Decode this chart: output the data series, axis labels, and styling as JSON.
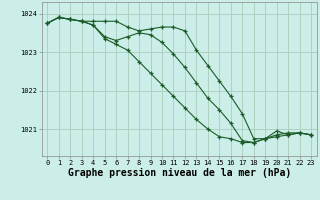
{
  "background_color": "#cceee8",
  "grid_color": "#aaccbb",
  "line_color": "#1a5c28",
  "marker_color": "#1a5c28",
  "xlabel": "Graphe pression niveau de la mer (hPa)",
  "xlabel_fontsize": 7.0,
  "xlabel_fontweight": "bold",
  "ylabel_ticks": [
    1021,
    1022,
    1023,
    1024
  ],
  "xlim": [
    -0.5,
    23.5
  ],
  "ylim": [
    1020.3,
    1024.3
  ],
  "series": [
    {
      "x": [
        0,
        1,
        2,
        3,
        4,
        5,
        6,
        7,
        8,
        9,
        10,
        11,
        12,
        13,
        14,
        15,
        16,
        17,
        18,
        19,
        20,
        21,
        22,
        23
      ],
      "y": [
        1023.75,
        1023.9,
        1023.85,
        1023.8,
        1023.8,
        1023.8,
        1023.8,
        1023.65,
        1023.55,
        1023.6,
        1023.65,
        1023.65,
        1023.55,
        1023.05,
        1022.65,
        1022.25,
        1021.85,
        1021.4,
        1020.75,
        1020.75,
        1020.95,
        1020.85,
        1020.9,
        1020.85
      ]
    },
    {
      "x": [
        0,
        1,
        2,
        3,
        4,
        5,
        6,
        7,
        8,
        9,
        10,
        11,
        12,
        13,
        14,
        15,
        16,
        17,
        18,
        19,
        20,
        21,
        22,
        23
      ],
      "y": [
        1023.75,
        1023.9,
        1023.85,
        1023.8,
        1023.7,
        1023.4,
        1023.3,
        1023.4,
        1023.5,
        1023.45,
        1023.25,
        1022.95,
        1022.6,
        1022.2,
        1021.8,
        1021.5,
        1021.15,
        1020.7,
        1020.65,
        1020.75,
        1020.8,
        1020.85,
        1020.9,
        1020.85
      ]
    },
    {
      "x": [
        0,
        1,
        2,
        3,
        4,
        5,
        6,
        7,
        8,
        9,
        10,
        11,
        12,
        13,
        14,
        15,
        16,
        17,
        18,
        19,
        20,
        21,
        22,
        23
      ],
      "y": [
        1023.75,
        1023.9,
        1023.85,
        1023.8,
        1023.7,
        1023.35,
        1023.2,
        1023.05,
        1022.75,
        1022.45,
        1022.15,
        1021.85,
        1021.55,
        1021.25,
        1021.0,
        1020.8,
        1020.75,
        1020.65,
        1020.65,
        1020.75,
        1020.85,
        1020.9,
        1020.9,
        1020.85
      ]
    }
  ],
  "xtick_labels": [
    "0",
    "1",
    "2",
    "3",
    "4",
    "5",
    "6",
    "7",
    "8",
    "9",
    "10",
    "11",
    "12",
    "13",
    "14",
    "15",
    "16",
    "17",
    "18",
    "19",
    "20",
    "21",
    "22",
    "23"
  ],
  "tick_fontsize": 5.0
}
